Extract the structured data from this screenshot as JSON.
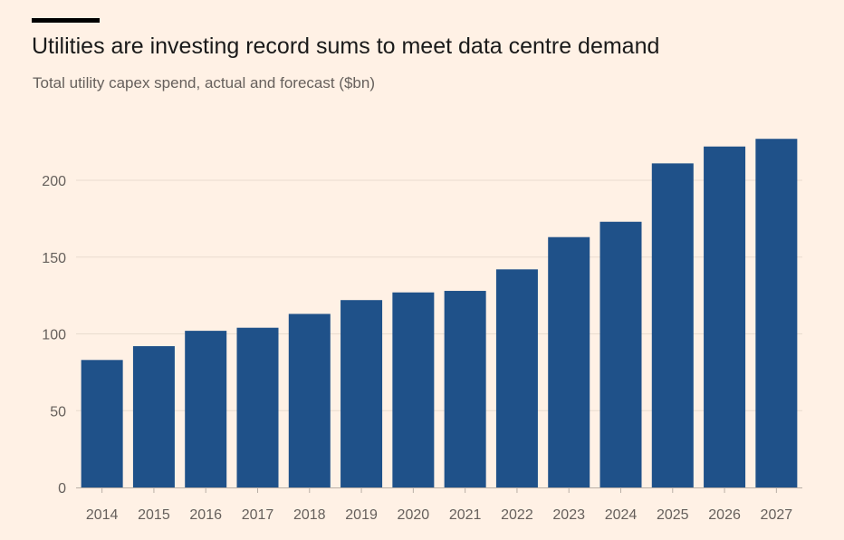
{
  "chart_data": {
    "type": "bar",
    "title": "Utilities are investing record sums to meet data centre demand",
    "subtitle": "Total utility capex spend, actual and forecast ($bn)",
    "xlabel": "",
    "ylabel": "",
    "categories": [
      "2014",
      "2015",
      "2016",
      "2017",
      "2018",
      "2019",
      "2020",
      "2021",
      "2022",
      "2023",
      "2024",
      "2025",
      "2026",
      "2027"
    ],
    "values": [
      83,
      92,
      102,
      104,
      113,
      122,
      127,
      128,
      142,
      163,
      173,
      211,
      222,
      227
    ],
    "ylim": [
      0,
      230
    ],
    "yticks": [
      0,
      50,
      100,
      150,
      200
    ],
    "grid": true,
    "legend": "none",
    "colors": {
      "bar": "#1F5189",
      "background": "#FFF1E5",
      "grid": "#E9DCCF",
      "axis": "#B9AFA6",
      "tick_text": "#66605C",
      "title": "#1A1A1A",
      "rule": "#000000"
    }
  }
}
